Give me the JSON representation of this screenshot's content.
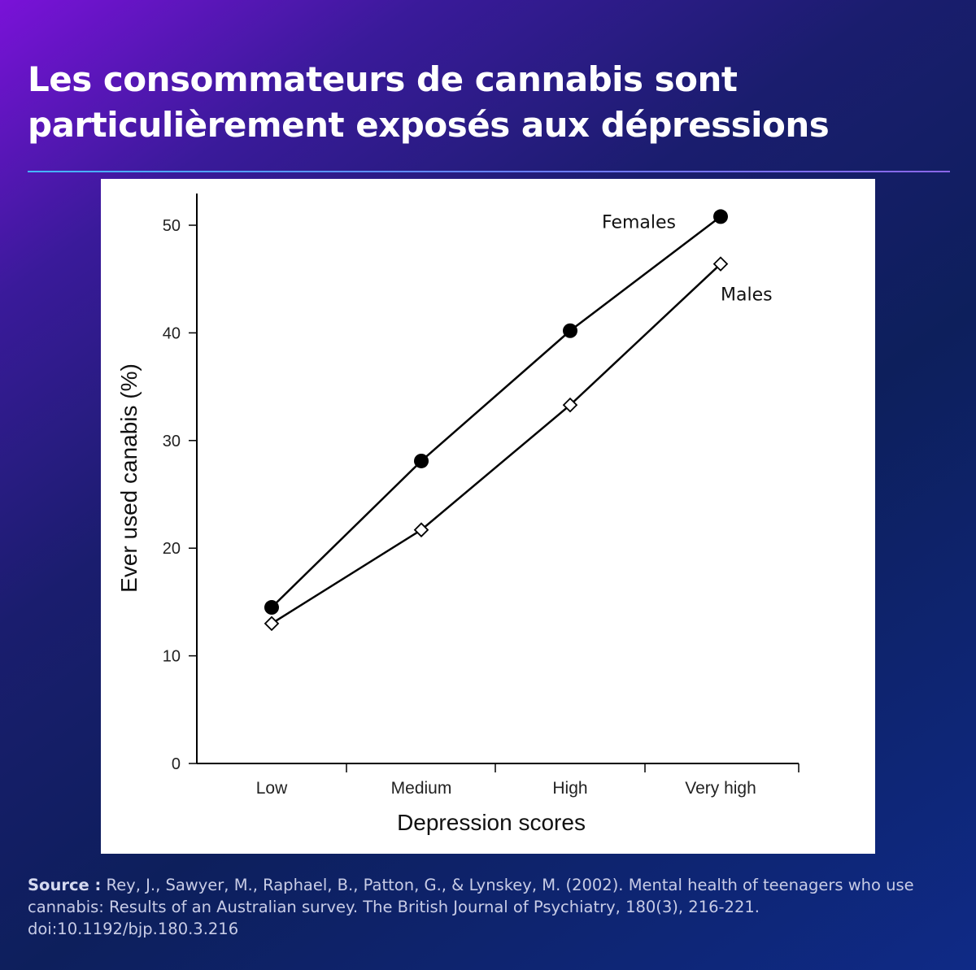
{
  "slide": {
    "title_line1": "Les consommateurs de cannabis sont",
    "title_line2": "particulièrement exposés aux dépressions"
  },
  "source": {
    "label": "Source :",
    "text": "Rey, J., Sawyer, M., Raphael, B., Patton, G., & Lynskey, M. (2002). Mental health of teenagers who use cannabis: Results of an Australian survey. The British Journal of Psychiatry, 180(3), 216-221. doi:10.1192/bjp.180.3.216"
  },
  "colors": {
    "title": "#ffffff",
    "source_text": "#c8cce6",
    "divider_start": "#45b6ff",
    "chart_ink": "#000000"
  },
  "chart_data": {
    "type": "line",
    "title": "",
    "xlabel": "Depression scores",
    "ylabel": "Ever used canabis (%)",
    "categories": [
      "Low",
      "Medium",
      "High",
      "Very high"
    ],
    "ylim": [
      0,
      50
    ],
    "yticks": [
      0,
      10,
      20,
      30,
      40,
      50
    ],
    "grid": false,
    "series": [
      {
        "name": "Females",
        "marker": "filled-circle",
        "values": [
          14.5,
          28.1,
          40.2,
          50.8
        ]
      },
      {
        "name": "Males",
        "marker": "open-diamond",
        "values": [
          13.0,
          21.7,
          33.3,
          46.4
        ]
      }
    ]
  }
}
